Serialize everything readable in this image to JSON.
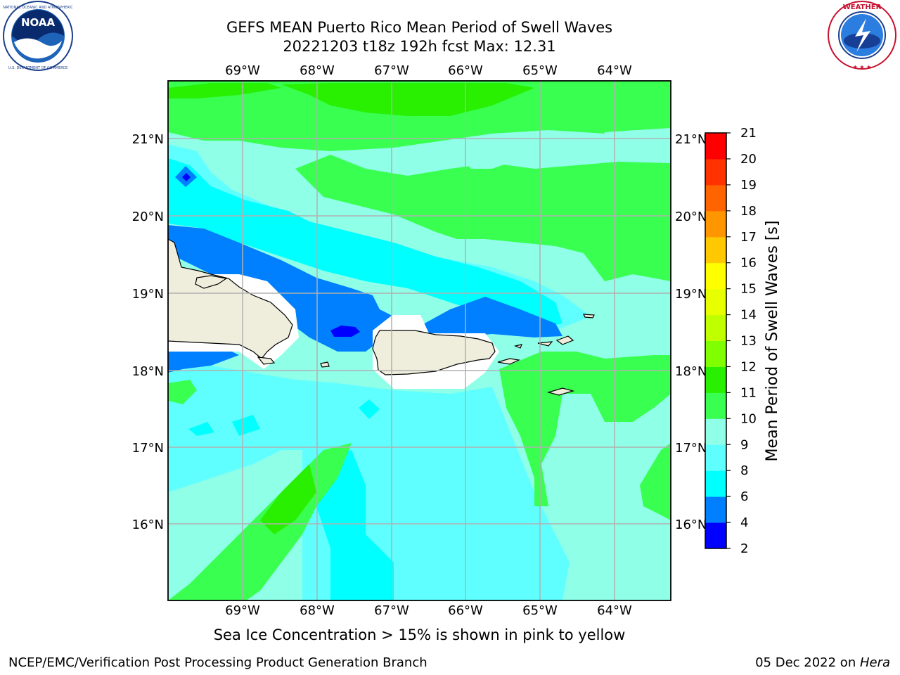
{
  "title": {
    "line1": "GEFS MEAN Puerto Rico Mean Period of Swell Waves",
    "line2": "20221203 t18z 192h fcst   Max: 12.31"
  },
  "caption": "Sea Ice Concentration > 15% is shown in pink to yellow",
  "footer": {
    "left": "NCEP/EMC/Verification Post Processing Product Generation Branch",
    "date": "05 Dec 2022 on ",
    "host": "Hera"
  },
  "logos": {
    "left": "noaa-logo",
    "right": "nws-logo"
  },
  "map": {
    "lon_labels": [
      "69°W",
      "68°W",
      "67°W",
      "66°W",
      "65°W",
      "64°W"
    ],
    "lat_labels": [
      "21°N",
      "20°N",
      "19°N",
      "18°N",
      "17°N",
      "16°N"
    ],
    "colors": {
      "land": "#efeedc",
      "coast": "#000000",
      "grid": "#b0b0b0",
      "unmasked": "#ffffff"
    }
  },
  "colorbar": {
    "label": "Mean Period of Swell Waves [s]",
    "ticks": [
      "2",
      "4",
      "6",
      "8",
      "9",
      "10",
      "11",
      "12",
      "13",
      "14",
      "15",
      "16",
      "17",
      "18",
      "19",
      "20",
      "21"
    ],
    "colors": [
      "#0000ff",
      "#0080ff",
      "#00ffff",
      "#60ffff",
      "#90ffe8",
      "#38ff50",
      "#28f000",
      "#80ff00",
      "#c0ff00",
      "#e8ff00",
      "#ffff00",
      "#ffc800",
      "#ff9600",
      "#ff6400",
      "#ff3200",
      "#ff0000"
    ]
  }
}
